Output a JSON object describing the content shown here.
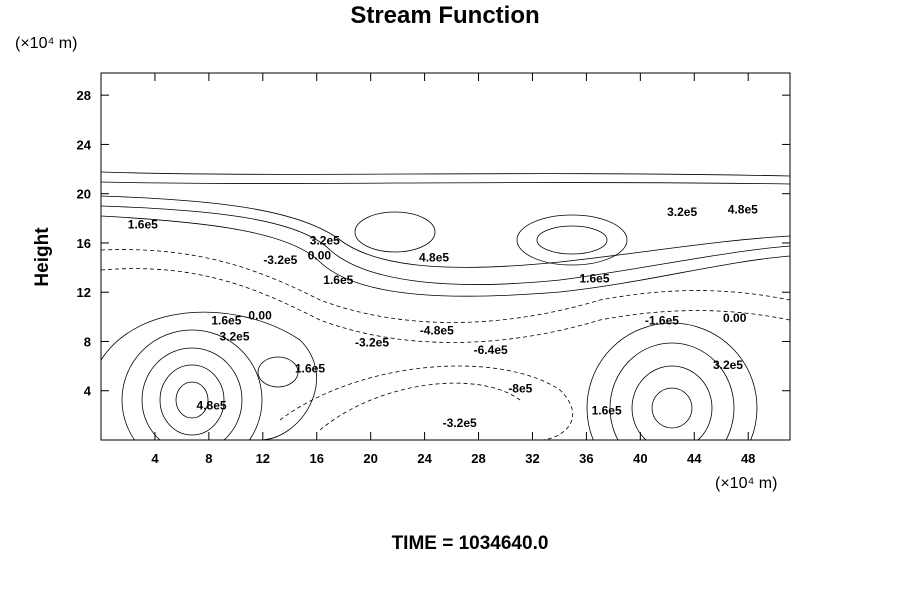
{
  "chart_data": {
    "type": "contour",
    "title": "Stream Function",
    "x_unit": "(×10⁴ m)",
    "y_unit": "(×10⁴ m)",
    "y_label": "Height",
    "footer": "TIME = 1034640.0",
    "xlim": [
      0,
      51.1
    ],
    "ylim": [
      0,
      29.8
    ],
    "xticks": [
      4,
      8,
      12,
      16,
      20,
      24,
      28,
      32,
      36,
      40,
      44,
      48
    ],
    "yticks": [
      4,
      8,
      12,
      16,
      20,
      24,
      28
    ],
    "contour_labels": [
      {
        "text": "1.6e5",
        "x": 3.1,
        "y": 17.5
      },
      {
        "text": "3.2e5",
        "x": 16.6,
        "y": 16.2
      },
      {
        "text": "-3.2e5",
        "x": 13.3,
        "y": 14.6
      },
      {
        "text": "0.00",
        "x": 16.2,
        "y": 15.0
      },
      {
        "text": "1.6e5",
        "x": 17.6,
        "y": 13.0
      },
      {
        "text": "4.8e5",
        "x": 24.7,
        "y": 14.8
      },
      {
        "text": "3.2e5",
        "x": 43.1,
        "y": 18.5
      },
      {
        "text": "4.8e5",
        "x": 47.6,
        "y": 18.7
      },
      {
        "text": "1.6e5",
        "x": 36.6,
        "y": 13.1
      },
      {
        "text": "1.6e5",
        "x": 9.3,
        "y": 9.7
      },
      {
        "text": "0.00",
        "x": 11.8,
        "y": 10.1
      },
      {
        "text": "3.2e5",
        "x": 9.9,
        "y": 8.4
      },
      {
        "text": "-3.2e5",
        "x": 20.1,
        "y": 7.9
      },
      {
        "text": "-4.8e5",
        "x": 24.9,
        "y": 8.9
      },
      {
        "text": "-6.4e5",
        "x": 28.9,
        "y": 7.3
      },
      {
        "text": "-8e5",
        "x": 31.1,
        "y": 4.2
      },
      {
        "text": "-1.6e5",
        "x": 41.6,
        "y": 9.7
      },
      {
        "text": "0.00",
        "x": 47.0,
        "y": 9.9
      },
      {
        "text": "-3.2e5",
        "x": 26.6,
        "y": 1.4
      },
      {
        "text": "1.6e5",
        "x": 15.5,
        "y": 5.8
      },
      {
        "text": "4.8e5",
        "x": 8.2,
        "y": 2.8
      },
      {
        "text": "1.6e5",
        "x": 37.5,
        "y": 2.4
      },
      {
        "text": "3.2e5",
        "x": 46.5,
        "y": 6.1
      }
    ]
  }
}
